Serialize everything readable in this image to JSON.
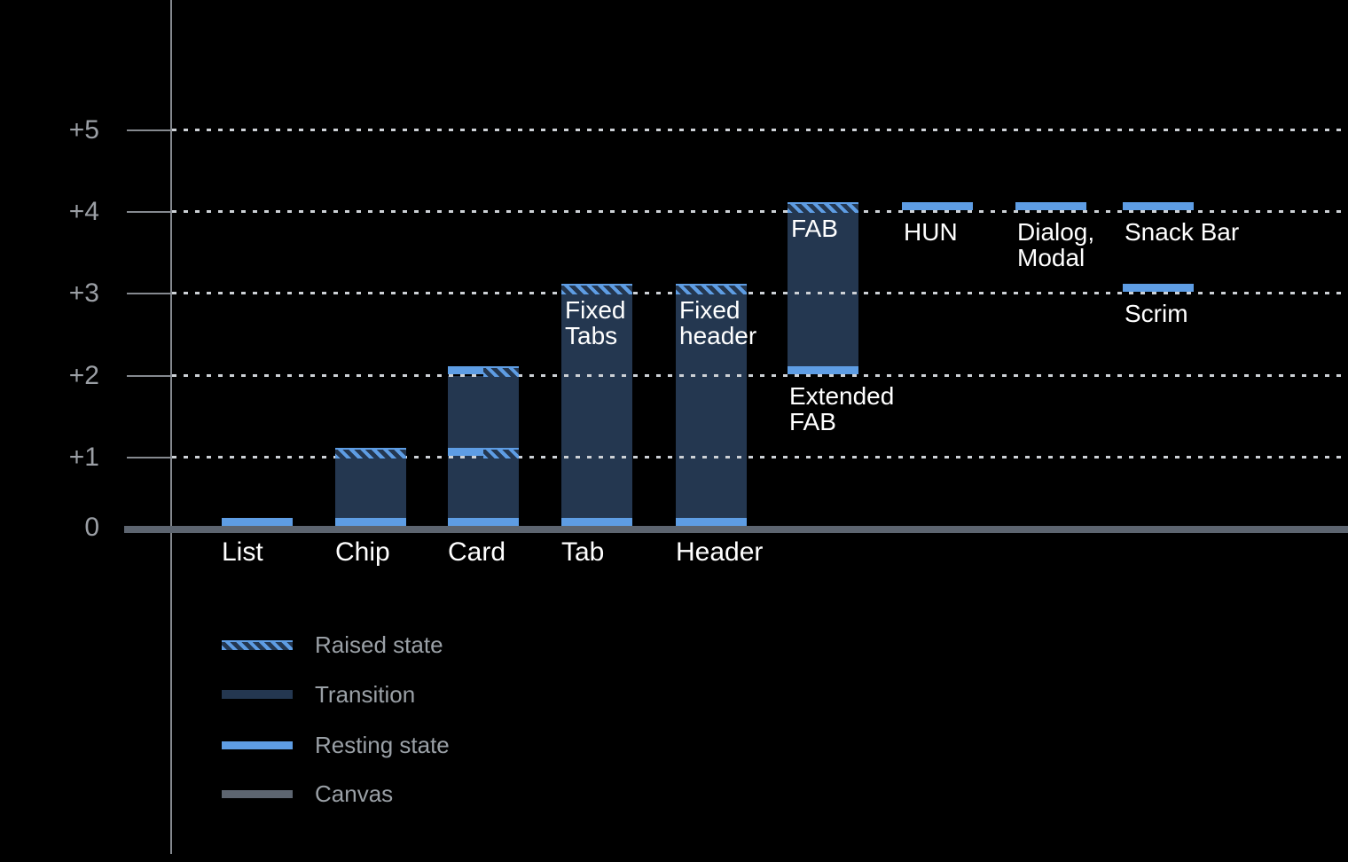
{
  "chart_data": {
    "type": "bar",
    "description": "Material-style elevation diagram: UI components and their resting / raised elevation levels above the canvas",
    "y_axis": {
      "tick_labels": [
        "+5",
        "+4",
        "+3",
        "+2",
        "+1",
        "0"
      ],
      "levels": [
        5,
        4,
        3,
        2,
        1,
        0
      ],
      "ylim": [
        0,
        5
      ],
      "grid": "dotted horizontal gridlines at +1 through +5"
    },
    "columns": [
      {
        "col": 0,
        "slug": "list",
        "label": "List",
        "label_pos": "baseline",
        "resting": [
          0
        ]
      },
      {
        "col": 1,
        "slug": "chip",
        "label": "Chip",
        "label_pos": "baseline",
        "resting": [
          0
        ],
        "raised": [
          1
        ],
        "transition": [
          0,
          1
        ]
      },
      {
        "col": 2,
        "slug": "card",
        "label": "Card",
        "label_pos": "baseline",
        "resting": [
          0
        ],
        "split_resting_raised": [
          1,
          2
        ],
        "transition": [
          0,
          2
        ]
      },
      {
        "col": 3,
        "slug": "tab",
        "label": "Tab",
        "label_pos": "baseline",
        "resting": [
          0
        ],
        "raised": [
          3
        ],
        "transition": [
          0,
          3
        ],
        "inside_label": "Fixed\nTabs"
      },
      {
        "col": 4,
        "slug": "header",
        "label": "Header",
        "label_pos": "baseline",
        "resting": [
          0
        ],
        "raised": [
          3
        ],
        "transition": [
          0,
          3
        ],
        "inside_label": "Fixed\nheader"
      },
      {
        "col": 5,
        "slug": "extended-fab",
        "label": "Extended\nFAB",
        "label_pos": "below",
        "label_level": 2,
        "resting": [
          2
        ],
        "raised": [
          4
        ],
        "transition": [
          2,
          4
        ],
        "inside_label": "FAB"
      },
      {
        "col": 6,
        "slug": "hun",
        "label": "HUN",
        "label_pos": "below",
        "label_level": 4,
        "resting": [
          4
        ]
      },
      {
        "col": 7,
        "slug": "dialog-modal",
        "label": "Dialog,\nModal",
        "label_pos": "below",
        "label_level": 4,
        "resting": [
          4
        ]
      },
      {
        "col": 8,
        "slug": "snack-bar",
        "label": "Snack Bar",
        "label_pos": "below",
        "label_level": 4,
        "resting": [
          4
        ]
      },
      {
        "col": 8,
        "slug": "scrim",
        "label": "Scrim",
        "label_pos": "below",
        "label_level": 3,
        "resting": [
          3
        ]
      }
    ],
    "legend": {
      "position": "bottom-left",
      "items": [
        {
          "key": "raised",
          "label": "Raised state"
        },
        {
          "key": "transition",
          "label": "Transition"
        },
        {
          "key": "resting",
          "label": "Resting state"
        },
        {
          "key": "canvas",
          "label": "Canvas"
        }
      ]
    },
    "colors": {
      "background": "#000000",
      "resting": "#5e9de4",
      "raised_stripe": "#5e9de4",
      "transition": "#243750",
      "canvas": "#5d6570",
      "gridline": "#cdd1d6",
      "axis": "#85898f",
      "axis_label": "#9b9fa5",
      "bar_label": "#ffffff",
      "legend_label": "#9aa0a6"
    }
  }
}
